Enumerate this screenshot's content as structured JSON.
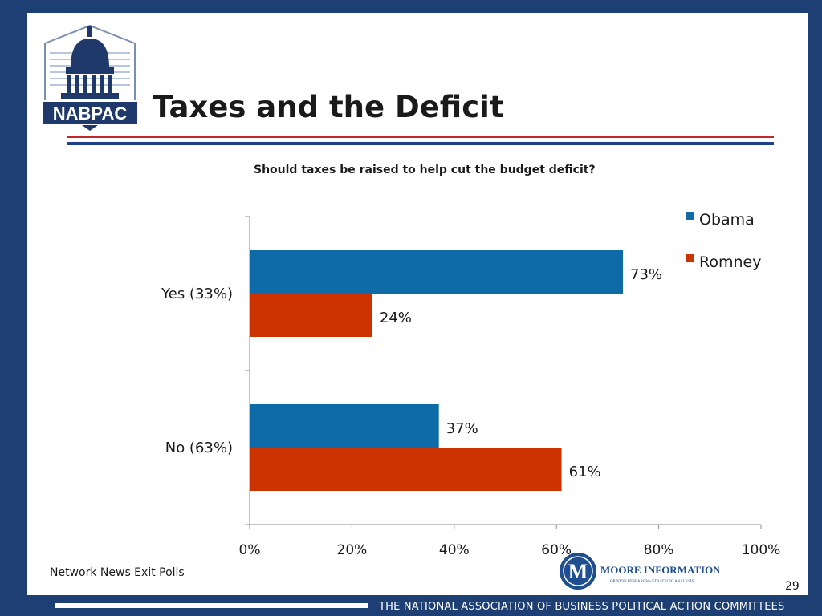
{
  "slide": {
    "title": "Taxes and the Deficit",
    "logo_text": "NABPAC",
    "source": "Network News Exit Polls",
    "page_number": "29",
    "footer_org": "THE NATIONAL ASSOCIATION OF BUSINESS POLITICAL ACTION COMMITTEES",
    "moore_logo": {
      "name": "MOORE INFORMATION",
      "tagline": "OPINION RESEARCH • STRATEGIC ANALYSIS",
      "letter": "M"
    }
  },
  "colors": {
    "background": "#1e3f73",
    "obama": "#0f6aa8",
    "romney": "#cc3300"
  },
  "chart_data": {
    "type": "bar",
    "orientation": "horizontal",
    "title": "Should taxes be raised to help cut the budget deficit?",
    "categories": [
      "Yes (33%)",
      "No (63%)"
    ],
    "series": [
      {
        "name": "Obama",
        "values": [
          73,
          37
        ],
        "labels": [
          "73%",
          "37%"
        ]
      },
      {
        "name": "Romney",
        "values": [
          24,
          61
        ],
        "labels": [
          "24%",
          "61%"
        ]
      }
    ],
    "xlim": [
      0,
      100
    ],
    "x_ticks": [
      "0%",
      "20%",
      "40%",
      "60%",
      "80%",
      "100%"
    ],
    "grid": false,
    "legend": "top-right"
  }
}
